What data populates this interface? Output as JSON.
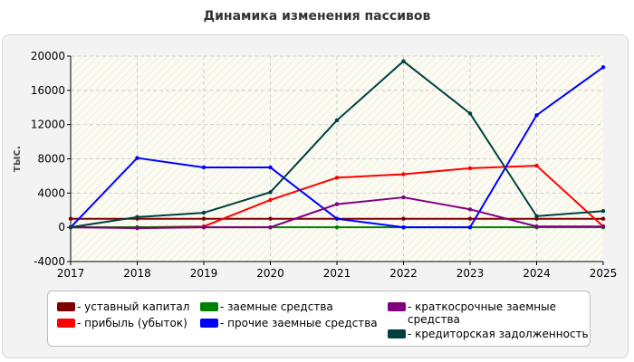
{
  "chart_data": {
    "type": "line",
    "title": "Динамика изменения пассивов",
    "ylabel": "тыс.",
    "xlabel": "",
    "x": [
      "2017",
      "2018",
      "2019",
      "2020",
      "2021",
      "2022",
      "2023",
      "2024",
      "2025"
    ],
    "ylim": [
      -4000,
      20000
    ],
    "yticks": [
      -4000,
      0,
      4000,
      8000,
      12000,
      16000,
      20000
    ],
    "grid": true,
    "legend_position": "bottom",
    "series": [
      {
        "name": "- уставный капитал",
        "color": "#800000",
        "values": [
          1000,
          1000,
          1000,
          1000,
          1000,
          1000,
          1000,
          1000,
          1000
        ]
      },
      {
        "name": "- прибыль (убыток)",
        "color": "#ff0000",
        "values": [
          0,
          0,
          100,
          3200,
          5800,
          6200,
          6900,
          7200,
          100
        ]
      },
      {
        "name": "- заемные средства",
        "color": "#008000",
        "values": [
          0,
          0,
          0,
          0,
          0,
          0,
          0,
          0,
          0
        ]
      },
      {
        "name": "- прочие заемные средства",
        "color": "#0000ff",
        "values": [
          0,
          8100,
          7000,
          7000,
          1000,
          0,
          0,
          13100,
          18700
        ]
      },
      {
        "name": "- краткосрочные заемные средства",
        "color": "#800080",
        "values": [
          0,
          -100,
          0,
          0,
          2700,
          3500,
          2100,
          100,
          100
        ]
      },
      {
        "name": "- кредиторская задолженность",
        "color": "#004040",
        "values": [
          0,
          1200,
          1700,
          4100,
          12500,
          19400,
          13300,
          1300,
          1900
        ]
      }
    ]
  }
}
